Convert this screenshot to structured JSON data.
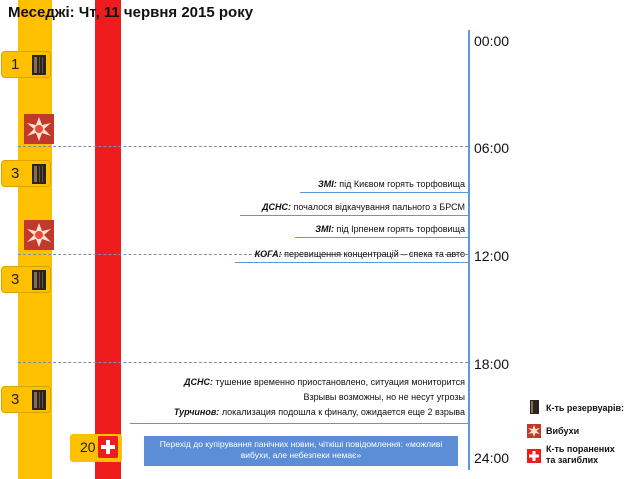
{
  "title": "Меседжі: Чт, 11 червня 2015 року",
  "times": [
    "00:00",
    "06:00",
    "12:00",
    "18:00",
    "24:00"
  ],
  "counters": [
    "1",
    "3",
    "3",
    "3"
  ],
  "casualties": "20",
  "events": [
    {
      "source": "ЗМІ:",
      "text": " під Києвом горять торфовища"
    },
    {
      "source": "ДСНС:",
      "text": " почалося відкачування пального з БРСМ"
    },
    {
      "source": "ЗМІ:",
      "text": " під Ірпенем горять торфовища"
    },
    {
      "source": "КОГА:",
      "text": " перевищення концентрацій – спека та авто"
    },
    {
      "source": "ДСНС:",
      "text": " тушение временно приостановлено, ситуация мониторится"
    },
    {
      "source": "",
      "text": "Взрывы возможны, но не несут угрозы"
    },
    {
      "source": "Турчинов:",
      "text": " локализация подошла к финалу, ожидается еще 2 взрыва"
    }
  ],
  "note": "Перехід до купірування панічних новин, чіткіші повідомлення: «можливі вибухи, але небезпеки немає»",
  "legend": {
    "tanks": "К-ть резервуарів:",
    "explosions": "Вибухи",
    "casualties": "К-ть поранених та загиблих"
  },
  "colors": {
    "yellow": "#ffc000",
    "red": "#ee1c1c",
    "timeline": "#5b9bd5",
    "note_bg": "#5b8ed6"
  },
  "icons": [
    "tank-icon",
    "explosion-icon",
    "red-cross-icon"
  ]
}
